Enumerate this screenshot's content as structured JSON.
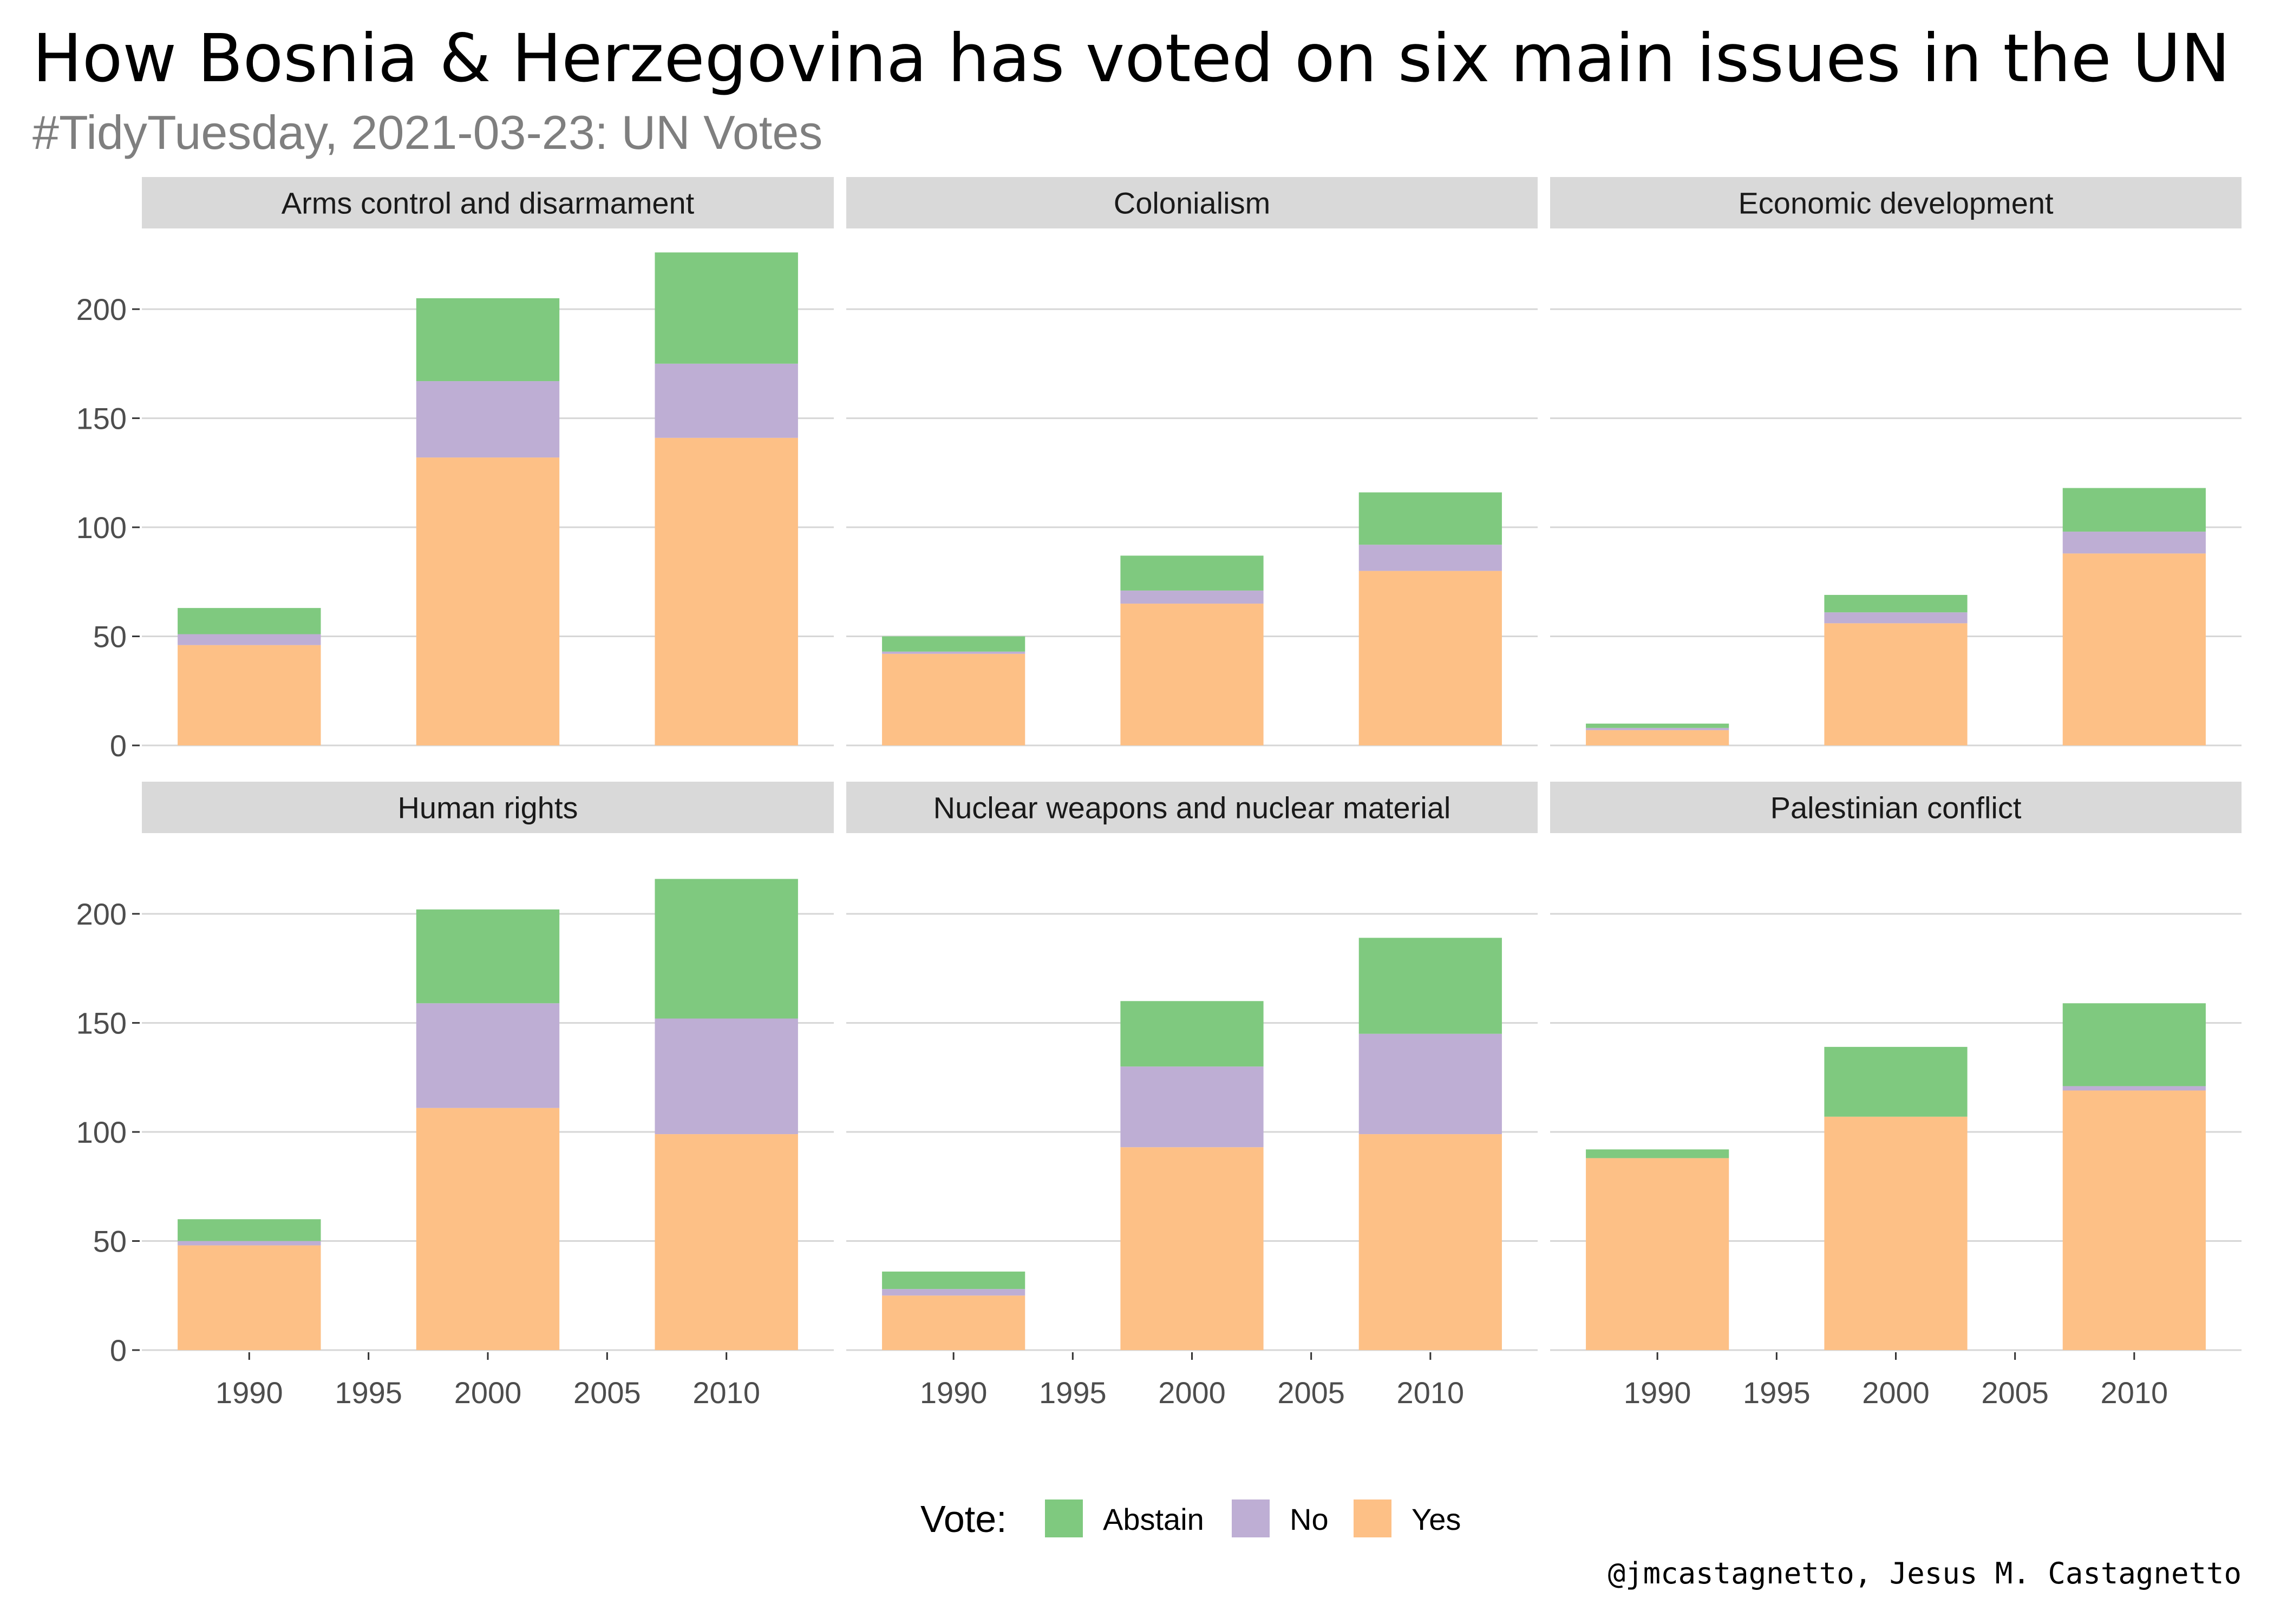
{
  "title": "How Bosnia & Herzegovina has voted on six main issues in the UN",
  "subtitle": "#TidyTuesday, 2021-03-23: UN Votes",
  "caption": "@jmcastagnetto, Jesus M. Castagnetto",
  "legend": {
    "title": "Vote:",
    "position": "bottom",
    "items": [
      {
        "label": "Abstain",
        "color": "#7fc97f"
      },
      {
        "label": "No",
        "color": "#beaed4"
      },
      {
        "label": "Yes",
        "color": "#fdc086"
      }
    ]
  },
  "chart_data": {
    "type": "bar",
    "stacked": true,
    "facets": [
      "Arms control and disarmament",
      "Colonialism",
      "Economic development",
      "Human rights",
      "Nuclear weapons and nuclear material",
      "Palestinian conflict"
    ],
    "x": [
      1990,
      2000,
      2010
    ],
    "x_ticks": [
      1990,
      1995,
      2000,
      2005,
      2010
    ],
    "xlim": [
      1985.5,
      2014.5
    ],
    "y_ticks": [
      0,
      50,
      100,
      150,
      200
    ],
    "ylim": [
      0,
      237
    ],
    "grid": true,
    "series": [
      {
        "name": "Yes",
        "color": "#fdc086",
        "values": [
          [
            46,
            132,
            141
          ],
          [
            42,
            65,
            80
          ],
          [
            7,
            56,
            88
          ],
          [
            48,
            111,
            99
          ],
          [
            25,
            93,
            99
          ],
          [
            88,
            107,
            119
          ]
        ]
      },
      {
        "name": "No",
        "color": "#beaed4",
        "values": [
          [
            5,
            35,
            34
          ],
          [
            1,
            6,
            12
          ],
          [
            1,
            5,
            10
          ],
          [
            2,
            48,
            53
          ],
          [
            3,
            37,
            46
          ],
          [
            0,
            0,
            2
          ]
        ]
      },
      {
        "name": "Abstain",
        "color": "#7fc97f",
        "values": [
          [
            12,
            38,
            51
          ],
          [
            7,
            16,
            24
          ],
          [
            2,
            8,
            20
          ],
          [
            10,
            43,
            64
          ],
          [
            8,
            30,
            44
          ],
          [
            4,
            32,
            38
          ]
        ]
      }
    ]
  }
}
